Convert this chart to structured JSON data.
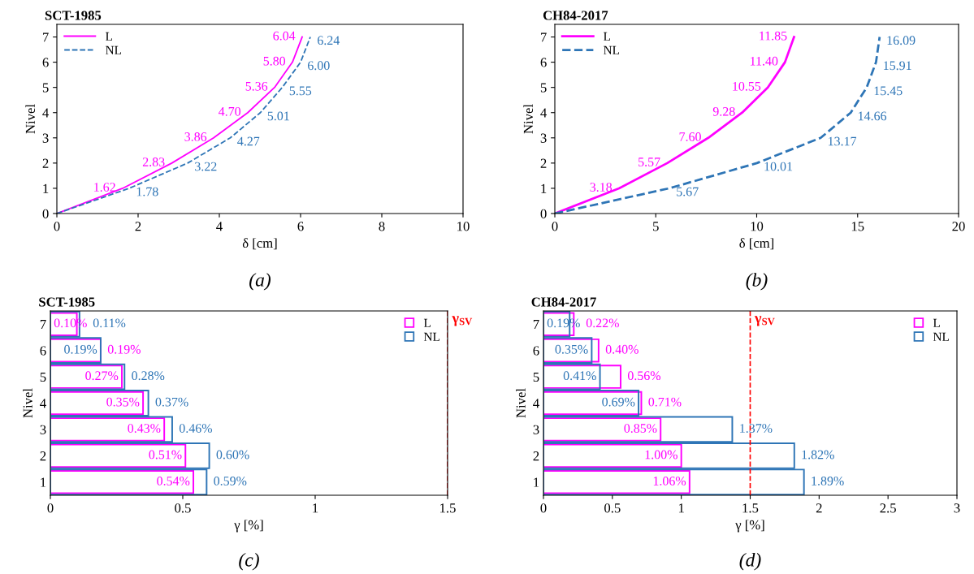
{
  "chart_data": [
    {
      "type": "line",
      "title": "SCT-1985",
      "xlabel": "δ [cm]",
      "ylabel": "Nivel",
      "xlim": [
        0,
        10
      ],
      "xticks": [
        0,
        2,
        4,
        6,
        8,
        10
      ],
      "ylim": [
        0,
        7.5
      ],
      "yticks": [
        0,
        1,
        2,
        3,
        4,
        5,
        6,
        7
      ],
      "legend": "top left",
      "grid": false,
      "annotations": [
        "(a)",
        {
          "text": "1.62",
          "x": 1.62,
          "y": 1
        },
        {
          "text": "2.83",
          "x": 2.83,
          "y": 2
        },
        {
          "text": "3.86",
          "x": 3.86,
          "y": 3
        },
        {
          "text": "4.70",
          "x": 4.7,
          "y": 4
        },
        {
          "text": "5.36",
          "x": 5.36,
          "y": 5
        },
        {
          "text": "5.80",
          "x": 5.8,
          "y": 6
        },
        {
          "text": "6.04",
          "x": 6.04,
          "y": 7
        },
        {
          "text": "1.78",
          "x": 1.78,
          "y": 1
        },
        {
          "text": "3.22",
          "x": 3.22,
          "y": 2
        },
        {
          "text": "4.27",
          "x": 4.27,
          "y": 3
        },
        {
          "text": "5.01",
          "x": 5.01,
          "y": 4
        },
        {
          "text": "5.55",
          "x": 5.55,
          "y": 5
        },
        {
          "text": "6.00",
          "x": 6.0,
          "y": 6
        },
        {
          "text": "6.24",
          "x": 6.24,
          "y": 7
        }
      ],
      "series": [
        {
          "name": "L",
          "color": "#ff00ff",
          "line_style": "solid",
          "x": [
            0,
            1.62,
            2.83,
            3.86,
            4.7,
            5.36,
            5.8,
            6.04
          ],
          "values": [
            0,
            1,
            2,
            3,
            4,
            5,
            6,
            7
          ]
        },
        {
          "name": "NL",
          "color": "#2e75b6",
          "line_style": "dashed",
          "x": [
            0,
            1.78,
            3.22,
            4.27,
            5.01,
            5.55,
            6.0,
            6.24
          ],
          "values": [
            0,
            1,
            2,
            3,
            4,
            5,
            6,
            7
          ]
        }
      ]
    },
    {
      "type": "line",
      "title": "CH84-2017",
      "xlabel": "δ [cm]",
      "ylabel": "Nivel",
      "xlim": [
        0,
        20
      ],
      "xticks": [
        0,
        5,
        10,
        15,
        20
      ],
      "ylim": [
        0,
        7.5
      ],
      "yticks": [
        0,
        1,
        2,
        3,
        4,
        5,
        6,
        7
      ],
      "legend": "top left",
      "grid": false,
      "annotations": [
        "(b)",
        {
          "text": "3.18",
          "x": 3.18,
          "y": 1
        },
        {
          "text": "5.57",
          "x": 5.57,
          "y": 2
        },
        {
          "text": "7.60",
          "x": 7.6,
          "y": 3
        },
        {
          "text": "9.28",
          "x": 9.28,
          "y": 4
        },
        {
          "text": "10.55",
          "x": 10.55,
          "y": 5
        },
        {
          "text": "11.40",
          "x": 11.4,
          "y": 6
        },
        {
          "text": "11.85",
          "x": 11.85,
          "y": 7
        },
        {
          "text": "5.67",
          "x": 5.67,
          "y": 1
        },
        {
          "text": "10.01",
          "x": 10.01,
          "y": 2
        },
        {
          "text": "13.17",
          "x": 13.17,
          "y": 3
        },
        {
          "text": "14.66",
          "x": 14.66,
          "y": 4
        },
        {
          "text": "15.45",
          "x": 15.45,
          "y": 5
        },
        {
          "text": "15.91",
          "x": 15.91,
          "y": 6
        },
        {
          "text": "16.09",
          "x": 16.09,
          "y": 7
        }
      ],
      "series": [
        {
          "name": "L",
          "color": "#ff00ff",
          "line_style": "solid",
          "x": [
            0,
            3.18,
            5.57,
            7.6,
            9.28,
            10.55,
            11.4,
            11.85
          ],
          "values": [
            0,
            1,
            2,
            3,
            4,
            5,
            6,
            7
          ]
        },
        {
          "name": "NL",
          "color": "#2e75b6",
          "line_style": "dashed",
          "x": [
            0,
            5.67,
            10.01,
            13.17,
            14.66,
            15.45,
            15.91,
            16.09
          ],
          "values": [
            0,
            1,
            2,
            3,
            4,
            5,
            6,
            7
          ]
        }
      ]
    },
    {
      "type": "bar",
      "orientation": "horizontal",
      "title": "SCT-1985",
      "xlabel": "γ [%]",
      "ylabel": "Nivel",
      "categories": [
        "7",
        "6",
        "5",
        "4",
        "3",
        "2",
        "1"
      ],
      "xlim": [
        0,
        1.5
      ],
      "xticks": [
        0,
        0.5,
        1,
        1.5
      ],
      "legend": "top right",
      "grid": false,
      "annotations": [
        "(c)"
      ],
      "ref_lines": [
        {
          "axis": "x",
          "value": 1.5,
          "label": "γ$_{SV}$",
          "color": "#ff0000",
          "line_style": "dashed"
        }
      ],
      "series": [
        {
          "name": "L",
          "color": "#ff00ff",
          "values": [
            0.1,
            0.19,
            0.27,
            0.35,
            0.43,
            0.51,
            0.54
          ],
          "value_labels": [
            "0.10%",
            "0.19%",
            "0.27%",
            "0.35%",
            "0.43%",
            "0.51%",
            "0.54%"
          ]
        },
        {
          "name": "NL",
          "color": "#2e75b6",
          "values": [
            0.11,
            0.19,
            0.28,
            0.37,
            0.46,
            0.6,
            0.59
          ],
          "value_labels": [
            "0.11%",
            "0.19%",
            "0.28%",
            "0.37%",
            "0.46%",
            "0.60%",
            "0.59%"
          ]
        }
      ]
    },
    {
      "type": "bar",
      "orientation": "horizontal",
      "title": "CH84-2017",
      "xlabel": "γ [%]",
      "ylabel": "Nivel",
      "categories": [
        "7",
        "6",
        "5",
        "4",
        "3",
        "2",
        "1"
      ],
      "xlim": [
        0,
        3
      ],
      "xticks": [
        0,
        0.5,
        1,
        1.5,
        2,
        2.5,
        3
      ],
      "legend": "top right",
      "grid": false,
      "annotations": [
        "(d)"
      ],
      "ref_lines": [
        {
          "axis": "x",
          "value": 1.5,
          "label": "γ$_{SV}$",
          "color": "#ff0000",
          "line_style": "dashed"
        }
      ],
      "series": [
        {
          "name": "L",
          "color": "#ff00ff",
          "values": [
            0.22,
            0.4,
            0.56,
            0.71,
            0.85,
            1.0,
            1.06
          ],
          "value_labels": [
            "0.22%",
            "0.40%",
            "0.56%",
            "0.71%",
            "0.85%",
            "1.00%",
            "1.06%"
          ]
        },
        {
          "name": "NL",
          "color": "#2e75b6",
          "values": [
            0.19,
            0.35,
            0.41,
            0.69,
            1.37,
            1.82,
            1.89
          ],
          "value_labels": [
            "0.19%",
            "0.35%",
            "0.41%",
            "0.69%",
            "1.37%",
            "1.82%",
            "1.89%"
          ]
        }
      ]
    }
  ]
}
